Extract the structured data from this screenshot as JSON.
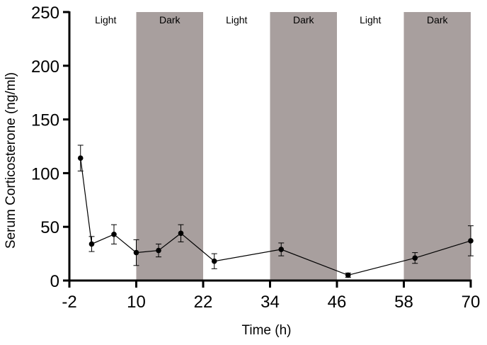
{
  "chart_data": {
    "type": "line",
    "title": "",
    "xlabel": "Time (h)",
    "ylabel": "Serum Corticosterone (ng/ml)",
    "xlim": [
      -2,
      70
    ],
    "ylim": [
      0,
      250
    ],
    "x_ticks": [
      -2,
      10,
      22,
      34,
      46,
      58,
      70
    ],
    "y_ticks": [
      0,
      50,
      100,
      150,
      200,
      250
    ],
    "grid": false,
    "colors": {
      "line": "#000000",
      "marker": "#000000",
      "dark_band": "#a89f9e"
    },
    "periods": [
      {
        "label": "Light",
        "start": -2,
        "end": 10,
        "shaded": false
      },
      {
        "label": "Dark",
        "start": 10,
        "end": 22,
        "shaded": true
      },
      {
        "label": "Light",
        "start": 22,
        "end": 34,
        "shaded": false
      },
      {
        "label": "Dark",
        "start": 34,
        "end": 46,
        "shaded": true
      },
      {
        "label": "Light",
        "start": 46,
        "end": 58,
        "shaded": false
      },
      {
        "label": "Dark",
        "start": 58,
        "end": 70,
        "shaded": true
      }
    ],
    "series": [
      {
        "name": "Serum Corticosterone",
        "x": [
          0,
          2,
          6,
          10,
          14,
          18,
          24,
          36,
          48,
          60,
          70
        ],
        "y": [
          114,
          34,
          43,
          26,
          28,
          44,
          18,
          29,
          5,
          21,
          37
        ],
        "err": [
          12,
          7,
          9,
          12,
          6,
          8,
          7,
          6,
          2,
          5,
          14
        ]
      }
    ]
  }
}
